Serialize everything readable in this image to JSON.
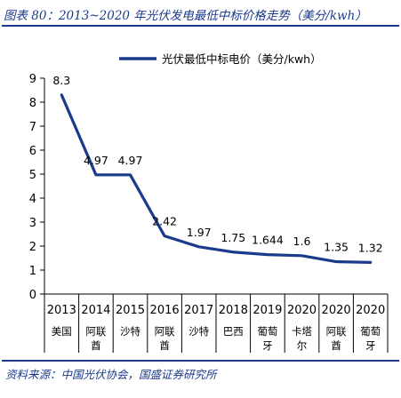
{
  "header": {
    "title": "图表 80：2013~2020 年光伏发电最低中标价格走势（美分/kwh）"
  },
  "footer": {
    "source": "资料来源：中国光伏协会，国盛证券研究所"
  },
  "chart_data": {
    "type": "line",
    "categories": [
      "2013",
      "2014",
      "2015",
      "2016",
      "2017",
      "2018",
      "2019",
      "2020",
      "2020",
      "2020"
    ],
    "category_sublabels": [
      [
        "美国"
      ],
      [
        "阿联",
        "酋"
      ],
      [
        "沙特"
      ],
      [
        "阿联",
        "酋"
      ],
      [
        "沙特"
      ],
      [
        "巴西"
      ],
      [
        "葡萄",
        "牙"
      ],
      [
        "卡塔",
        "尔"
      ],
      [
        "阿联",
        "酋"
      ],
      [
        "葡萄",
        "牙"
      ]
    ],
    "series": [
      {
        "name": "光伏最低中标电价（美分/kwh）",
        "values": [
          8.3,
          4.97,
          4.97,
          2.42,
          1.97,
          1.75,
          1.644,
          1.6,
          1.35,
          1.32
        ],
        "labels": [
          "8.3",
          "4.97",
          "4.97",
          "2.42",
          "1.97",
          "1.75",
          "1.644",
          "1.6",
          "1.35",
          "1.32"
        ]
      }
    ],
    "ylim": [
      0,
      9
    ],
    "yticks": [
      0,
      1,
      2,
      3,
      4,
      5,
      6,
      7,
      8,
      9
    ],
    "legend": "top-center",
    "grid": false,
    "colors": {
      "line": "#1a3a8c",
      "text": "#000000",
      "axis": "#000000",
      "title": "#1a3a8c"
    }
  }
}
